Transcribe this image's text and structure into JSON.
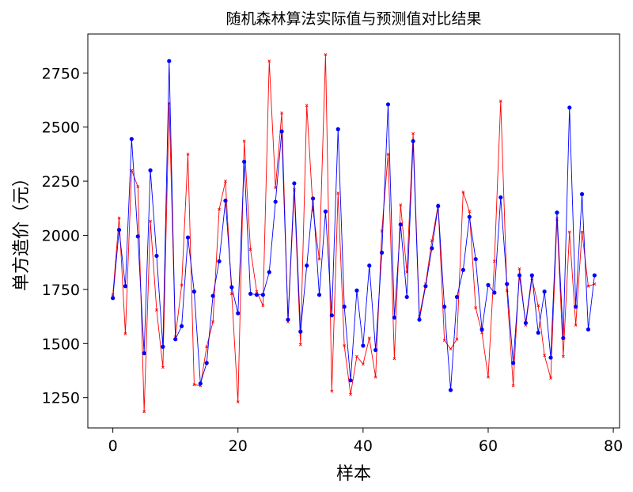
{
  "chart_data": {
    "type": "line",
    "title": "随机森林算法实际值与预测值对比结果",
    "xlabel": "样本",
    "ylabel": "单方造价（元）",
    "xlim": [
      -4,
      81
    ],
    "ylim": [
      1110,
      2930
    ],
    "xticks": [
      0,
      20,
      40,
      60,
      80
    ],
    "yticks": [
      1250,
      1500,
      1750,
      2000,
      2250,
      2500,
      2750
    ],
    "grid": false,
    "legend": "none",
    "series": [
      {
        "color": "#ff0000",
        "marker": "x",
        "values": [
          1725,
          2080,
          1545,
          2300,
          2225,
          1185,
          2065,
          1655,
          1390,
          2610,
          1530,
          1770,
          2375,
          1310,
          1305,
          1485,
          1600,
          2120,
          2250,
          1730,
          1230,
          2435,
          1935,
          1740,
          1675,
          2805,
          2220,
          2565,
          1600,
          2210,
          1495,
          2600,
          2115,
          1890,
          2835,
          1280,
          2195,
          1490,
          1265,
          1440,
          1405,
          1525,
          1345,
          2020,
          2375,
          1430,
          2140,
          1830,
          2470,
          1625,
          1775,
          1975,
          2140,
          1515,
          1475,
          1520,
          2200,
          2110,
          1665,
          1550,
          1345,
          1880,
          2620,
          1745,
          1305,
          1845,
          1585,
          1800,
          1675,
          1445,
          1340,
          2075,
          1440,
          2015,
          1585,
          2015,
          1765,
          1775
        ]
      },
      {
        "color": "#0000ff",
        "marker": "o",
        "values": [
          1710,
          2025,
          1765,
          2445,
          1995,
          1455,
          2300,
          1905,
          1485,
          2805,
          1520,
          1580,
          1990,
          1740,
          1315,
          1410,
          1720,
          1880,
          2160,
          1760,
          1640,
          2340,
          1730,
          1725,
          1725,
          1830,
          2155,
          2480,
          1610,
          2240,
          1555,
          1860,
          2170,
          1725,
          2110,
          1630,
          2490,
          1670,
          1330,
          1745,
          1490,
          1860,
          1470,
          1920,
          2605,
          1620,
          2050,
          1715,
          2435,
          1610,
          1765,
          1940,
          2135,
          1670,
          1285,
          1715,
          1840,
          2085,
          1890,
          1565,
          1770,
          1735,
          2175,
          1775,
          1410,
          1815,
          1595,
          1815,
          1550,
          1740,
          1435,
          2105,
          1525,
          2590,
          1670,
          2190,
          1565,
          1815
        ]
      }
    ]
  }
}
